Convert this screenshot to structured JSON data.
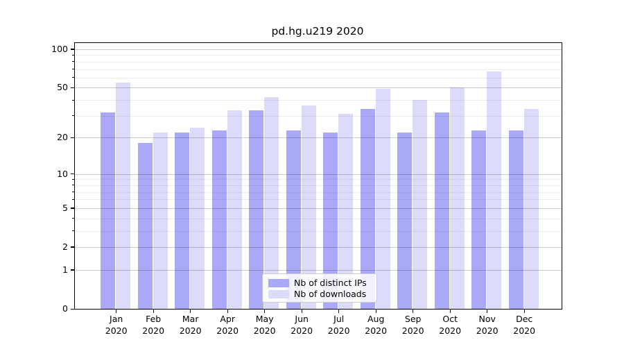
{
  "chart_data": {
    "type": "bar",
    "title": "pd.hg.u219 2020",
    "xlabel": "",
    "ylabel": "",
    "x_year": "2020",
    "categories": [
      "Jan",
      "Feb",
      "Mar",
      "Apr",
      "May",
      "Jun",
      "Jul",
      "Aug",
      "Sep",
      "Oct",
      "Nov",
      "Dec"
    ],
    "series": [
      {
        "name": "Nb of distinct IPs",
        "color": "#a9a9f7",
        "values": [
          32,
          18,
          22,
          23,
          33,
          23,
          22,
          34,
          22,
          32,
          23,
          23
        ]
      },
      {
        "name": "Nb of downloads",
        "color": "#dcdcfa",
        "values": [
          55,
          22,
          24,
          33,
          42,
          36,
          31,
          49,
          40,
          50,
          67,
          34
        ]
      }
    ],
    "yscale": "log1p",
    "ylim": [
      0,
      112
    ],
    "yticks": [
      0,
      1,
      2,
      5,
      10,
      20,
      50,
      100
    ],
    "yticks_minor": [
      3,
      4,
      6,
      7,
      8,
      9,
      30,
      40,
      60,
      70,
      80,
      90
    ],
    "grid": true,
    "legend_position": "bottom-center"
  },
  "colors": {
    "background": "#ffffff",
    "axis": "#000000",
    "text": "#000000",
    "major_grid": "#cccccc",
    "minor_grid": "#ededed",
    "legend_border": "#cccccc",
    "legend_background": "rgba(255,255,255,0.85)"
  }
}
